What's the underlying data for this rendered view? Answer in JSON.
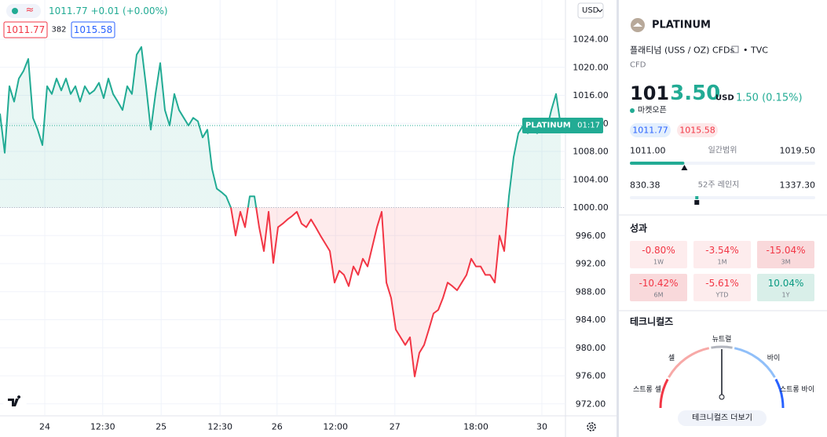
{
  "header": {
    "icon": "≈",
    "quote": "1011.77 +0.01 (+0.00%)",
    "bid": "1011.77",
    "spread": "382",
    "ask": "1015.58"
  },
  "chart_data": {
    "type": "line",
    "values": [
      1013.4,
      1007.8,
      1017.3,
      1015.1,
      1018.4,
      1019.5,
      1021.2,
      1012.8,
      1011.1,
      1008.9,
      1017.3,
      1016.2,
      1018.4,
      1016.7,
      1018.4,
      1016.2,
      1017.3,
      1015.1,
      1017.3,
      1016.2,
      1016.7,
      1017.8,
      1015.6,
      1018.4,
      1016.2,
      1015.1,
      1013.9,
      1017.3,
      1016.2,
      1021.8,
      1022.9,
      1017.3,
      1011.1,
      1016.2,
      1020.6,
      1013.9,
      1011.7,
      1016.2,
      1013.9,
      1012.8,
      1011.7,
      1012.8,
      1012.3,
      1010.0,
      1011.1,
      1005.5,
      1002.7,
      1002.2,
      1001.6,
      1000.0,
      996.0,
      999.4,
      997.2,
      1001.6,
      1001.6,
      997.2,
      993.8,
      999.4,
      992.1,
      997.2,
      997.7,
      998.3,
      998.8,
      999.4,
      997.7,
      997.2,
      998.3,
      997.2,
      996.0,
      994.9,
      993.8,
      989.3,
      991.0,
      990.4,
      988.8,
      991.6,
      990.4,
      992.7,
      991.6,
      994.4,
      997.2,
      999.4,
      989.3,
      987.1,
      982.6,
      981.5,
      980.4,
      981.5,
      975.9,
      979.3,
      980.4,
      982.6,
      984.9,
      985.4,
      987.1,
      989.3,
      988.8,
      988.2,
      989.3,
      990.4,
      992.7,
      991.6,
      991.6,
      990.4,
      990.4,
      989.3,
      996.0,
      993.8,
      1001.6,
      1007.2,
      1010.6,
      1011.7,
      1010.6,
      1011.1,
      1010.6,
      1011.7,
      1011.1,
      1013.9,
      1016.2,
      1011.7
    ],
    "xlim": [
      0,
      120
    ],
    "xticks": [
      {
        "value": 9.5,
        "label": "24"
      },
      {
        "value": 21.8,
        "label": "12:30"
      },
      {
        "value": 34.2,
        "label": "25"
      },
      {
        "value": 46.7,
        "label": "12:30"
      },
      {
        "value": 58.8,
        "label": "26"
      },
      {
        "value": 71.2,
        "label": "12:00"
      },
      {
        "value": 83.8,
        "label": "27"
      },
      {
        "value": 101,
        "label": "18:00"
      },
      {
        "value": 115,
        "label": "30"
      }
    ],
    "ylim": [
      970.3,
      1029.6
    ],
    "yticks": [
      {
        "value": 972,
        "label": "972.00"
      },
      {
        "value": 976,
        "label": "976.00"
      },
      {
        "value": 980,
        "label": "980.00"
      },
      {
        "value": 984,
        "label": "984.00"
      },
      {
        "value": 988,
        "label": "988.00"
      },
      {
        "value": 992,
        "label": "992.00"
      },
      {
        "value": 996,
        "label": "996.00"
      },
      {
        "value": 1000,
        "label": "1000.00"
      },
      {
        "value": 1004,
        "label": "1004.00"
      },
      {
        "value": 1008,
        "label": "1008.00"
      },
      {
        "value": 1012,
        "label": "1012.00"
      },
      {
        "value": 1016,
        "label": "1016.00"
      },
      {
        "value": 1020,
        "label": "1020.00"
      },
      {
        "value": 1024,
        "label": "1024.00"
      }
    ],
    "baseline": 1000,
    "up_color": "#22ab94",
    "down_color": "#f23645",
    "grid": true,
    "currency": "USD",
    "last_label": "PLATINUM",
    "countdown": "01:17"
  },
  "panel": {
    "symbol": "PLATINUM",
    "description": "플래티넘 (USS / OZ) CFDs",
    "exchange": "• TVC",
    "kind": "CFD",
    "price_lead": "101",
    "price_tail": "3.50",
    "currency": "USD",
    "change": "1.50 (0.15%)",
    "status": "마켓오픈",
    "bid": "1011.77",
    "ask": "1015.58",
    "day_low": "1011.00",
    "day_label": "일간범위",
    "day_high": "1019.50",
    "year_low": "830.38",
    "year_label": "52주 레인지",
    "year_high": "1337.30",
    "performance_title": "성과",
    "performance": [
      {
        "value": "-0.80%",
        "period": "1W"
      },
      {
        "value": "-3.54%",
        "period": "1M"
      },
      {
        "value": "-15.04%",
        "period": "3M"
      },
      {
        "value": "-10.42%",
        "period": "6M"
      },
      {
        "value": "-5.61%",
        "period": "YTD"
      },
      {
        "value": "10.04%",
        "period": "1Y"
      }
    ],
    "technicals_title": "테크니컬즈",
    "gauge": {
      "neutral": "뉴트럴",
      "sell": "셀",
      "buy": "바이",
      "strong_sell": "스트롱 셀",
      "strong_buy": "스트롱 바이"
    },
    "button": "테크니컬즈 더보기"
  }
}
